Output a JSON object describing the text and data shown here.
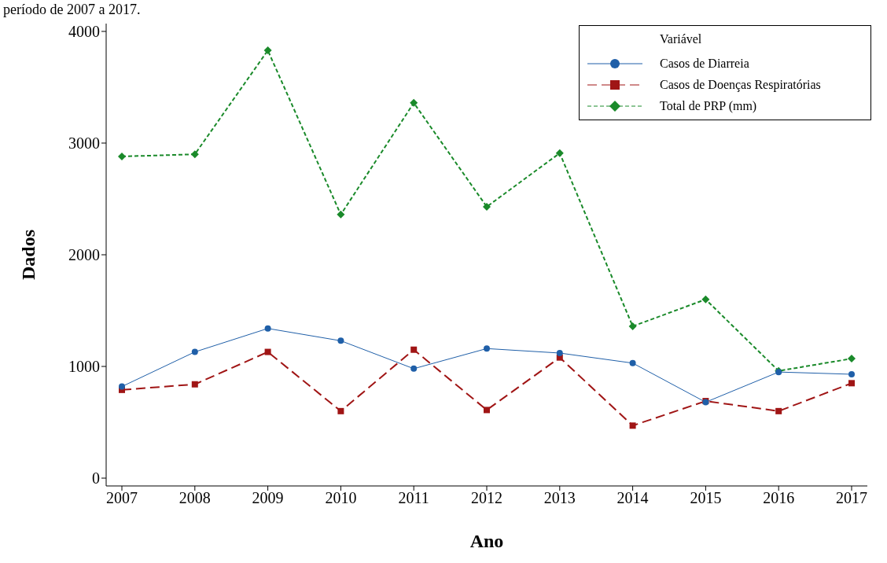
{
  "chart_data": {
    "type": "line",
    "annotations": [
      "período de 2007 a 2017."
    ],
    "xlabel": "Ano",
    "ylabel": "Dados",
    "legend_title": "Variável",
    "legend": "top right",
    "grid": false,
    "categories": [
      "2007",
      "2008",
      "2009",
      "2010",
      "2011",
      "2012",
      "2013",
      "2014",
      "2015",
      "2016",
      "2017"
    ],
    "ylim": [
      -70,
      4070
    ],
    "yticks": [
      0,
      1000,
      2000,
      3000,
      4000
    ],
    "series": [
      {
        "name": "Casos de Diarreia",
        "color": "#1f5fa8",
        "marker": "circle",
        "line_style": "solid",
        "values": [
          820,
          1130,
          1340,
          1230,
          980,
          1160,
          1120,
          1030,
          680,
          950,
          930
        ]
      },
      {
        "name": "Casos de Doenças Respiratórias",
        "color": "#a01515",
        "marker": "square",
        "line_style": "dashed",
        "values": [
          790,
          840,
          1130,
          600,
          1150,
          610,
          1080,
          470,
          690,
          600,
          850
        ]
      },
      {
        "name": "Total de PRP (mm)",
        "color": "#1a8a2a",
        "marker": "diamond",
        "line_style": "dotted",
        "values": [
          2880,
          2900,
          3830,
          2360,
          3360,
          2430,
          2910,
          1360,
          1600,
          960,
          1070
        ]
      }
    ]
  }
}
